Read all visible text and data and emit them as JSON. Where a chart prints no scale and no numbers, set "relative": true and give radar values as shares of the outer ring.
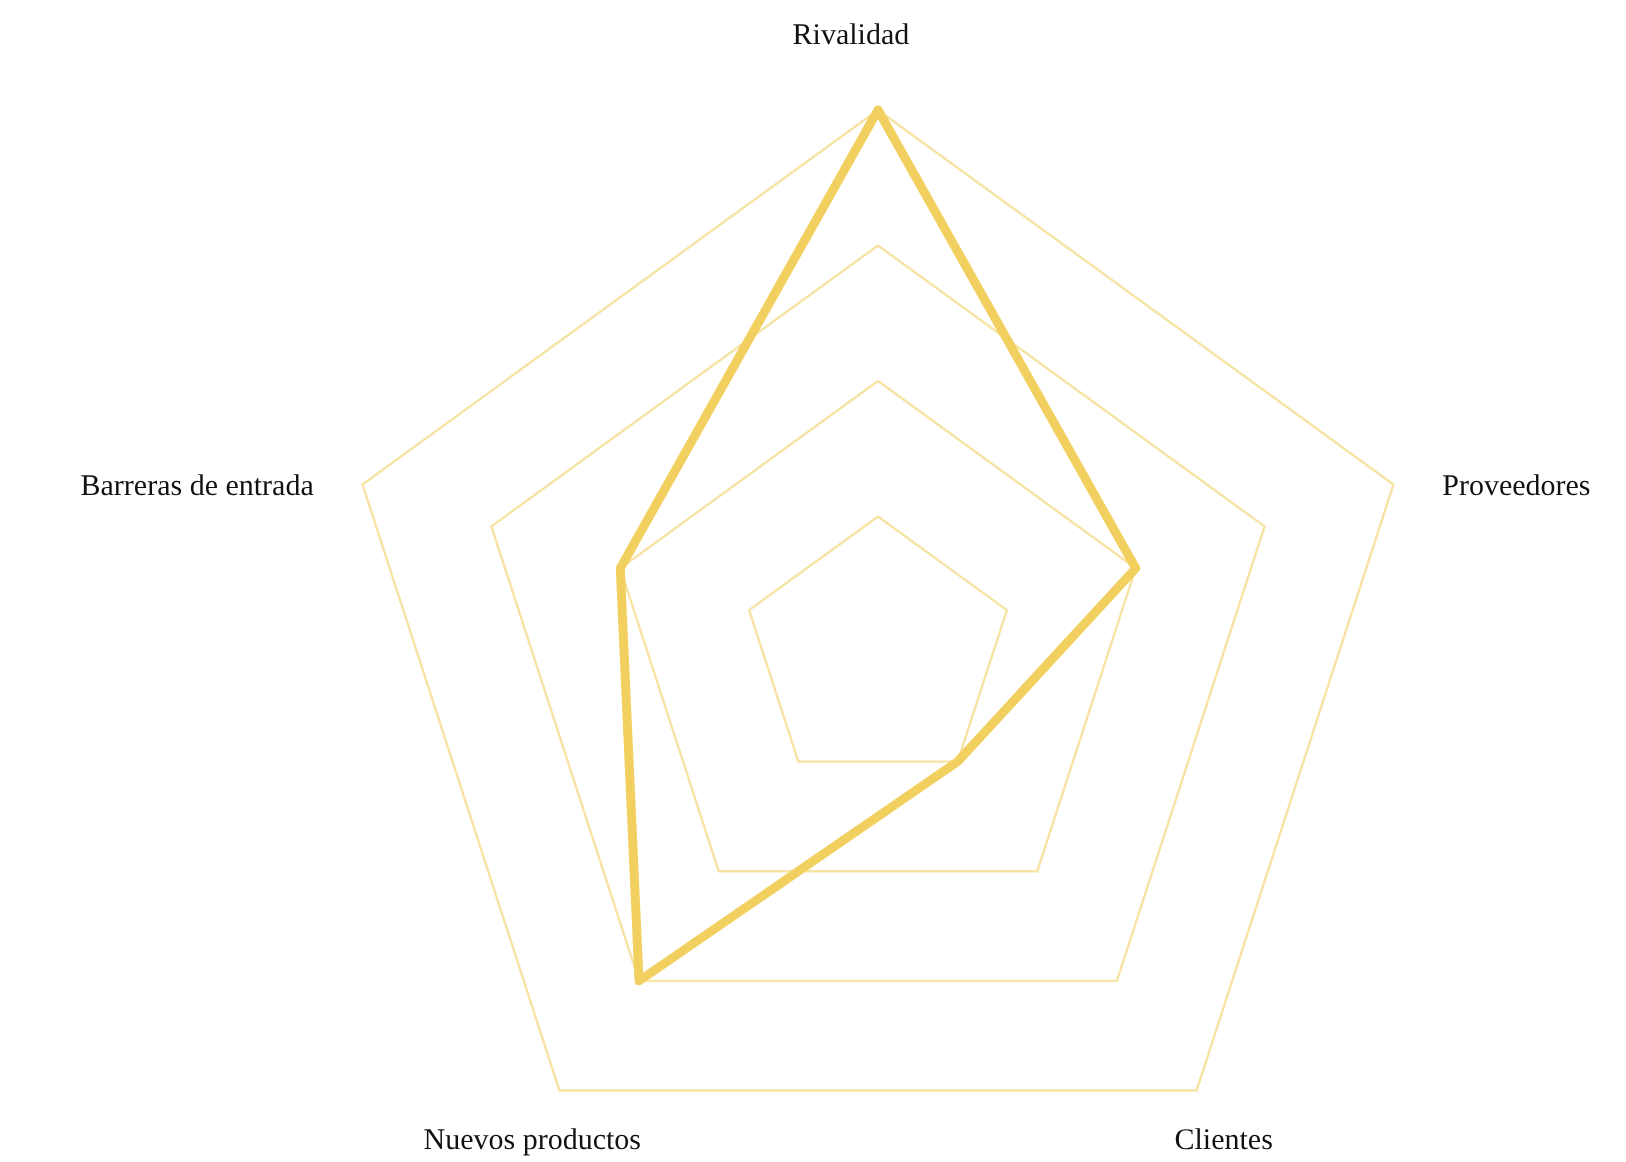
{
  "chart_data": {
    "type": "radar",
    "categories": [
      "Rivalidad",
      "Proveedores",
      "Clientes",
      "Nuevos productos",
      "Barreras de entrada"
    ],
    "relative": true,
    "grid": true,
    "series": [
      {
        "color": "#f2d060",
        "values": [
          1,
          0.5,
          0.25,
          0.75,
          0.5
        ]
      }
    ]
  }
}
